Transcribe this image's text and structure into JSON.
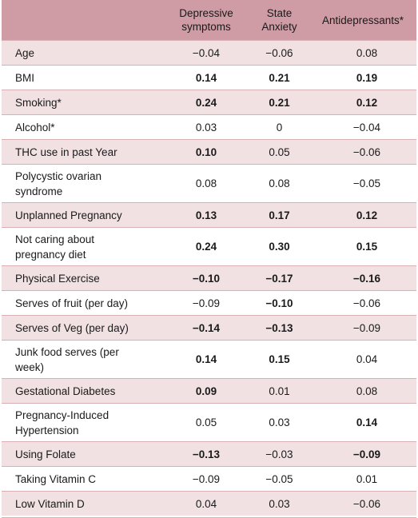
{
  "table": {
    "columns": [
      "",
      "Depressive symptoms",
      "State Anxiety",
      "Antidepressants*"
    ],
    "rows": [
      {
        "label": "Age",
        "values": [
          "−0.04",
          "−0.06",
          "0.08"
        ],
        "bold": [
          false,
          false,
          false
        ]
      },
      {
        "label": "BMI",
        "values": [
          "0.14",
          "0.21",
          "0.19"
        ],
        "bold": [
          true,
          true,
          true
        ]
      },
      {
        "label": "Smoking*",
        "values": [
          "0.24",
          "0.21",
          "0.12"
        ],
        "bold": [
          true,
          true,
          true
        ]
      },
      {
        "label": "Alcohol*",
        "values": [
          "0.03",
          "0",
          "−0.04"
        ],
        "bold": [
          false,
          false,
          false
        ]
      },
      {
        "label": "THC use in past Year",
        "values": [
          "0.10",
          "0.05",
          "−0.06"
        ],
        "bold": [
          true,
          false,
          false
        ]
      },
      {
        "label": "Polycystic ovarian syndrome",
        "values": [
          "0.08",
          "0.08",
          "−0.05"
        ],
        "bold": [
          false,
          false,
          false
        ]
      },
      {
        "label": "Unplanned Pregnancy",
        "values": [
          "0.13",
          "0.17",
          "0.12"
        ],
        "bold": [
          true,
          true,
          true
        ]
      },
      {
        "label": "Not caring about pregnancy diet",
        "values": [
          "0.24",
          "0.30",
          "0.15"
        ],
        "bold": [
          true,
          true,
          true
        ]
      },
      {
        "label": "Physical Exercise",
        "values": [
          "−0.10",
          "−0.17",
          "−0.16"
        ],
        "bold": [
          true,
          true,
          true
        ]
      },
      {
        "label": "Serves of fruit (per day)",
        "values": [
          "−0.09",
          "−0.10",
          "−0.06"
        ],
        "bold": [
          false,
          true,
          false
        ]
      },
      {
        "label": "Serves of Veg (per day)",
        "values": [
          "−0.14",
          "−0.13",
          "−0.09"
        ],
        "bold": [
          true,
          true,
          false
        ]
      },
      {
        "label": "Junk food serves (per week)",
        "values": [
          "0.14",
          "0.15",
          "0.04"
        ],
        "bold": [
          true,
          true,
          false
        ]
      },
      {
        "label": "Gestational Diabetes",
        "values": [
          "0.09",
          "0.01",
          "0.08"
        ],
        "bold": [
          true,
          false,
          false
        ]
      },
      {
        "label": "Pregnancy-Induced Hypertension",
        "values": [
          "0.05",
          "0.03",
          "0.14"
        ],
        "bold": [
          false,
          false,
          true
        ]
      },
      {
        "label": "Using Folate",
        "values": [
          "−0.13",
          "−0.03",
          "−0.09"
        ],
        "bold": [
          true,
          false,
          true
        ]
      },
      {
        "label": "Taking Vitamin C",
        "values": [
          "−0.09",
          "−0.05",
          "0.01"
        ],
        "bold": [
          false,
          false,
          false
        ]
      },
      {
        "label": "Low Vitamin D",
        "values": [
          "0.04",
          "0.03",
          "−0.06"
        ],
        "bold": [
          false,
          false,
          false
        ]
      }
    ]
  },
  "colors": {
    "header_bg": "#cf9ba4",
    "stripe_bg": "#f1e1e3",
    "rule": "#d7b0b6"
  }
}
